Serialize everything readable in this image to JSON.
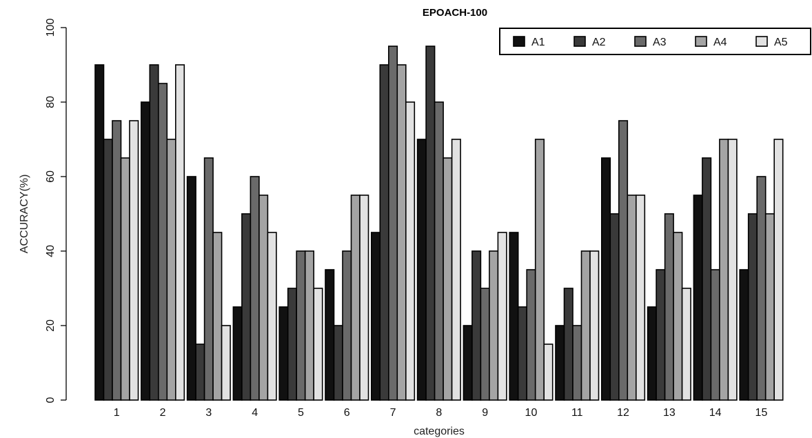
{
  "chart_data": {
    "type": "bar",
    "title": "EPOACH-100",
    "xlabel": "categories",
    "ylabel": "ACCURACY(%)",
    "ylim": [
      0,
      100
    ],
    "yticks": [
      "0",
      "20",
      "40",
      "60",
      "80",
      "100"
    ],
    "categories": [
      "1",
      "2",
      "3",
      "4",
      "5",
      "6",
      "7",
      "8",
      "9",
      "10",
      "11",
      "12",
      "13",
      "14",
      "15"
    ],
    "legend_position": "top-right",
    "grid": false,
    "series": [
      {
        "name": "A1",
        "color": "#111111",
        "values": [
          90,
          80,
          60,
          25,
          25,
          35,
          45,
          70,
          20,
          45,
          20,
          65,
          25,
          55,
          35
        ]
      },
      {
        "name": "A2",
        "color": "#3a3a3a",
        "values": [
          70,
          90,
          15,
          50,
          30,
          20,
          90,
          95,
          40,
          25,
          30,
          50,
          35,
          65,
          50
        ]
      },
      {
        "name": "A3",
        "color": "#6a6a6a",
        "values": [
          75,
          85,
          65,
          60,
          40,
          40,
          95,
          80,
          30,
          35,
          20,
          75,
          50,
          35,
          60
        ]
      },
      {
        "name": "A4",
        "color": "#a4a4a4",
        "values": [
          65,
          70,
          45,
          55,
          40,
          55,
          90,
          65,
          40,
          70,
          40,
          55,
          45,
          70,
          50
        ]
      },
      {
        "name": "A5",
        "color": "#e2e2e2",
        "values": [
          75,
          90,
          20,
          45,
          30,
          55,
          80,
          70,
          45,
          15,
          40,
          55,
          30,
          70,
          70
        ]
      }
    ]
  }
}
